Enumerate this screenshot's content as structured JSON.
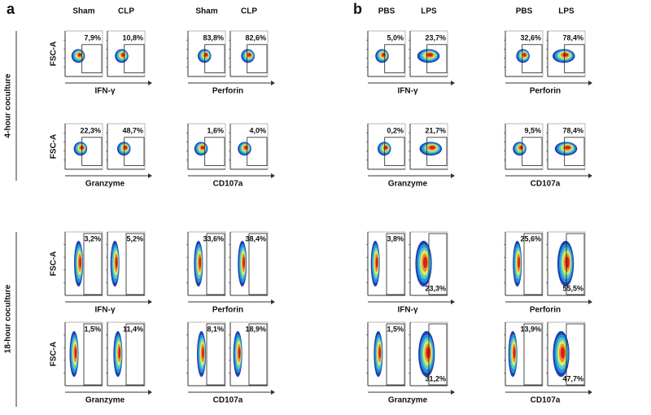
{
  "panels": [
    {
      "letter": "a",
      "columns": [
        "Sham",
        "CLP",
        "Sham",
        "CLP"
      ],
      "rows": [
        {
          "y_label": "FSC-A",
          "groups": [
            {
              "marker": "IFN-γ",
              "gates": [
                {
                  "top": "7,9%"
                },
                {
                  "top": "10,8%"
                }
              ]
            },
            {
              "marker": "Perforin",
              "gates": [
                {
                  "top": "83,8%"
                },
                {
                  "top": "82,6%"
                }
              ]
            }
          ]
        },
        {
          "y_label": "FSC-A",
          "groups": [
            {
              "marker": "Granzyme",
              "gates": [
                {
                  "top": "22,3%"
                },
                {
                  "top": "48,7%"
                }
              ]
            },
            {
              "marker": "CD107a",
              "gates": [
                {
                  "top": "1,6%"
                },
                {
                  "top": "4,0%"
                }
              ]
            }
          ]
        },
        {
          "y_label": "FSC-A",
          "groups": [
            {
              "marker": "IFN-γ",
              "gates": [
                {
                  "top": "3,2%"
                },
                {
                  "top": "5,2%"
                }
              ]
            },
            {
              "marker": "Perforin",
              "gates": [
                {
                  "top": "33,6%"
                },
                {
                  "top": "38,4%"
                }
              ]
            }
          ]
        },
        {
          "y_label": "FSC-A",
          "groups": [
            {
              "marker": "Granzyme",
              "gates": [
                {
                  "top": "1,5%"
                },
                {
                  "top": "11,4%"
                }
              ]
            },
            {
              "marker": "CD107a",
              "gates": [
                {
                  "top": "8,1%"
                },
                {
                  "top": "18,9%"
                }
              ]
            }
          ]
        }
      ]
    },
    {
      "letter": "b",
      "columns": [
        "PBS",
        "LPS",
        "PBS",
        "LPS"
      ],
      "rows": [
        {
          "groups": [
            {
              "marker": "IFN-γ",
              "gates": [
                {
                  "top": "5,0%"
                },
                {
                  "top": "23,7%"
                }
              ]
            },
            {
              "marker": "Perforin",
              "gates": [
                {
                  "top": "32,6%"
                },
                {
                  "top": "78,4%"
                }
              ]
            }
          ]
        },
        {
          "groups": [
            {
              "marker": "Granzyme",
              "gates": [
                {
                  "top": "0,2%"
                },
                {
                  "top": "21,7%"
                }
              ]
            },
            {
              "marker": "CD107a",
              "gates": [
                {
                  "top": "9,5%"
                },
                {
                  "top": "78,4%"
                }
              ]
            }
          ]
        },
        {
          "groups": [
            {
              "marker": "IFN-γ",
              "gates": [
                {
                  "top": "3,8%"
                },
                {
                  "bottom": "23,3%"
                }
              ]
            },
            {
              "marker": "Perforin",
              "gates": [
                {
                  "top": "25,6%"
                },
                {
                  "bottom": "55,5%"
                }
              ]
            }
          ]
        },
        {
          "groups": [
            {
              "marker": "Granzyme",
              "gates": [
                {
                  "top": "1,5%"
                },
                {
                  "bottom": "31,2%"
                }
              ]
            },
            {
              "marker": "CD107a",
              "gates": [
                {
                  "top": "13,9%"
                },
                {
                  "bottom": "47,7%"
                }
              ]
            }
          ]
        }
      ]
    }
  ],
  "row_labels": [
    "4-hour coculture",
    "18-hour coculture"
  ]
}
